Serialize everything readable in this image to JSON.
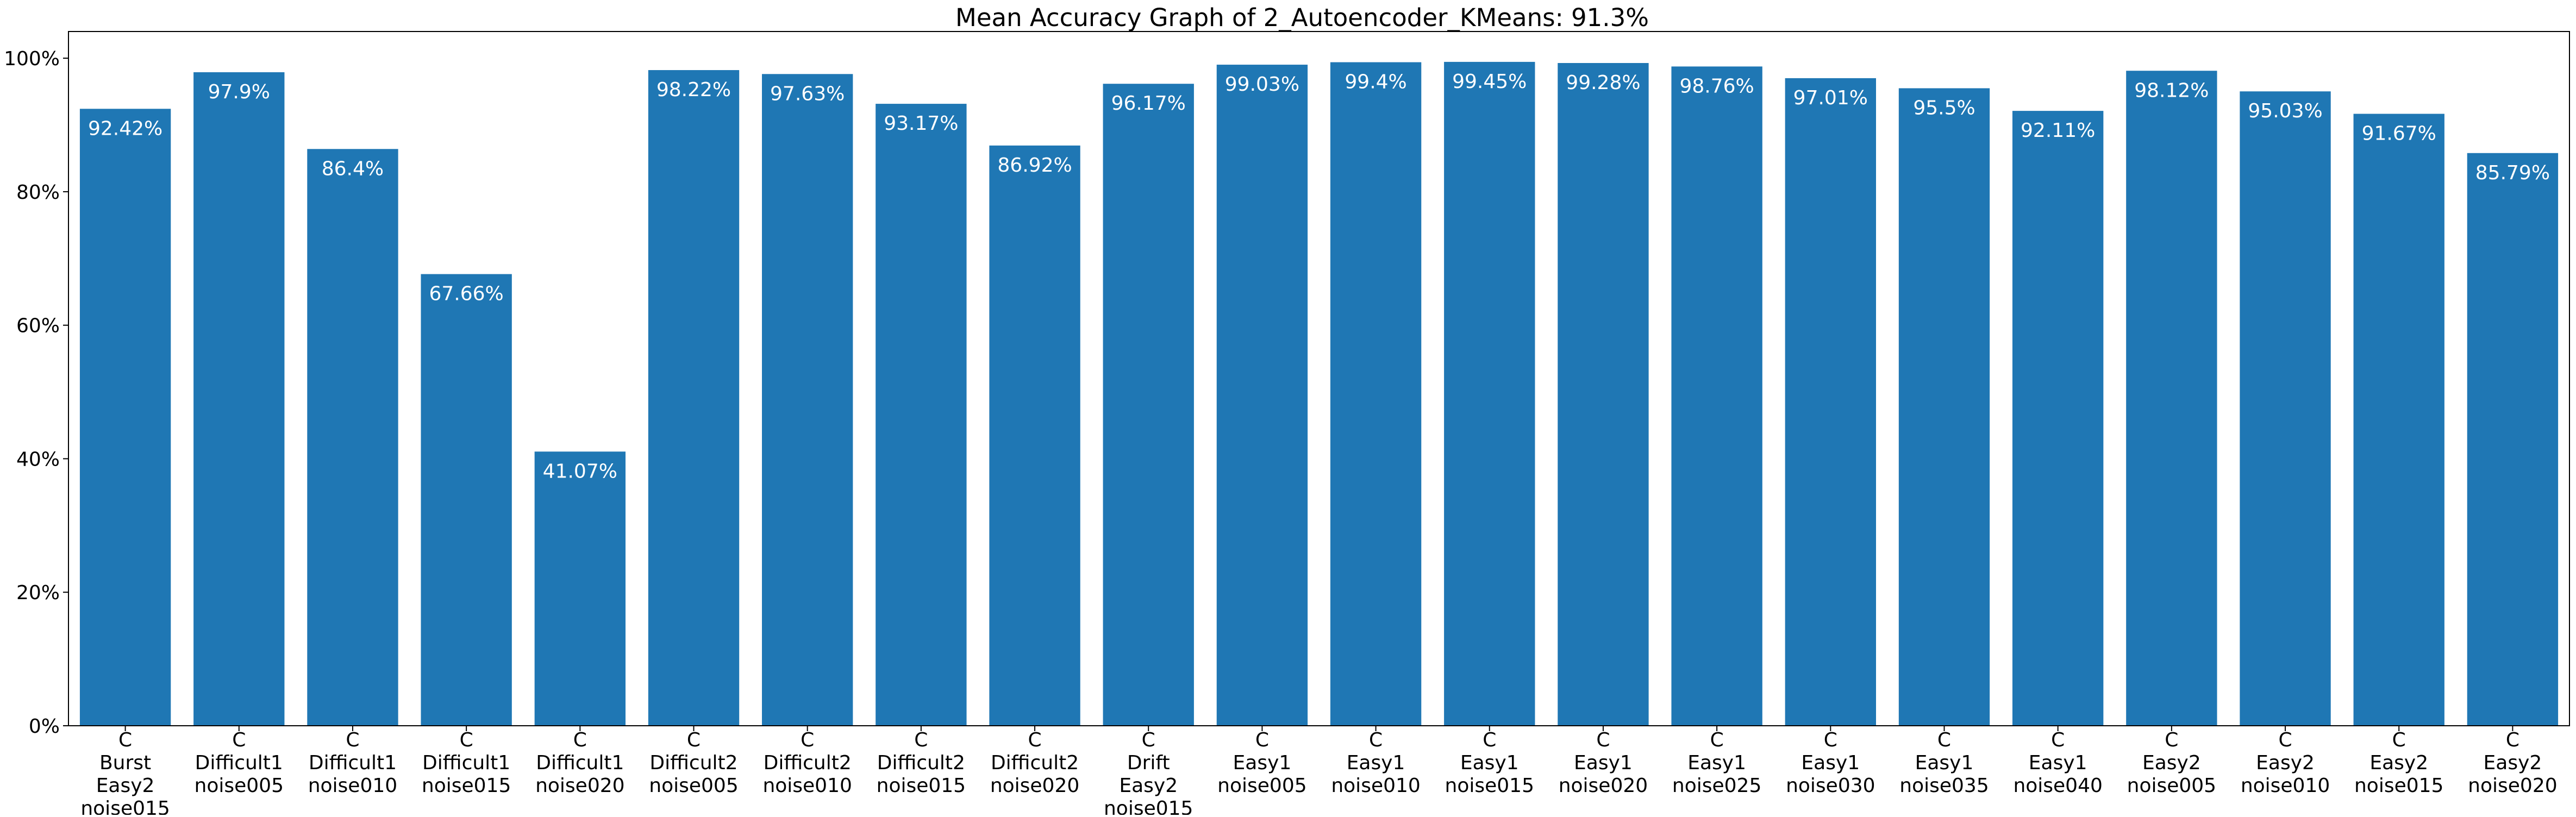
{
  "chart_data": {
    "type": "bar",
    "title": "Mean Accuracy Graph of 2_Autoencoder_KMeans: 91.3%",
    "xlabel": "",
    "ylabel": "",
    "ylim": [
      0,
      104
    ],
    "yticks": [
      0,
      20,
      40,
      60,
      80,
      100
    ],
    "ytick_labels": [
      "0%",
      "20%",
      "40%",
      "60%",
      "80%",
      "100%"
    ],
    "grid": false,
    "legend": "none",
    "bar_color": "#1f77b4",
    "categories": [
      "C\nBurst\nEasy2\nnoise015",
      "C\nDifficult1\nnoise005",
      "C\nDifficult1\nnoise010",
      "C\nDifficult1\nnoise015",
      "C\nDifficult1\nnoise020",
      "C\nDifficult2\nnoise005",
      "C\nDifficult2\nnoise010",
      "C\nDifficult2\nnoise015",
      "C\nDifficult2\nnoise020",
      "C\nDrift\nEasy2\nnoise015",
      "C\nEasy1\nnoise005",
      "C\nEasy1\nnoise010",
      "C\nEasy1\nnoise015",
      "C\nEasy1\nnoise020",
      "C\nEasy1\nnoise025",
      "C\nEasy1\nnoise030",
      "C\nEasy1\nnoise035",
      "C\nEasy1\nnoise040",
      "C\nEasy2\nnoise005",
      "C\nEasy2\nnoise010",
      "C\nEasy2\nnoise015",
      "C\nEasy2\nnoise020"
    ],
    "values": [
      92.42,
      97.9,
      86.4,
      67.66,
      41.07,
      98.22,
      97.63,
      93.17,
      86.92,
      96.17,
      99.03,
      99.4,
      99.45,
      99.28,
      98.76,
      97.01,
      95.5,
      92.11,
      98.12,
      95.03,
      91.67,
      85.79
    ],
    "data_labels": [
      "92.42%",
      "97.9%",
      "86.4%",
      "67.66%",
      "41.07%",
      "98.22%",
      "97.63%",
      "93.17%",
      "86.92%",
      "96.17%",
      "99.03%",
      "99.4%",
      "99.45%",
      "99.28%",
      "98.76%",
      "97.01%",
      "95.5%",
      "92.11%",
      "98.12%",
      "95.03%",
      "91.67%",
      "85.79%"
    ]
  }
}
